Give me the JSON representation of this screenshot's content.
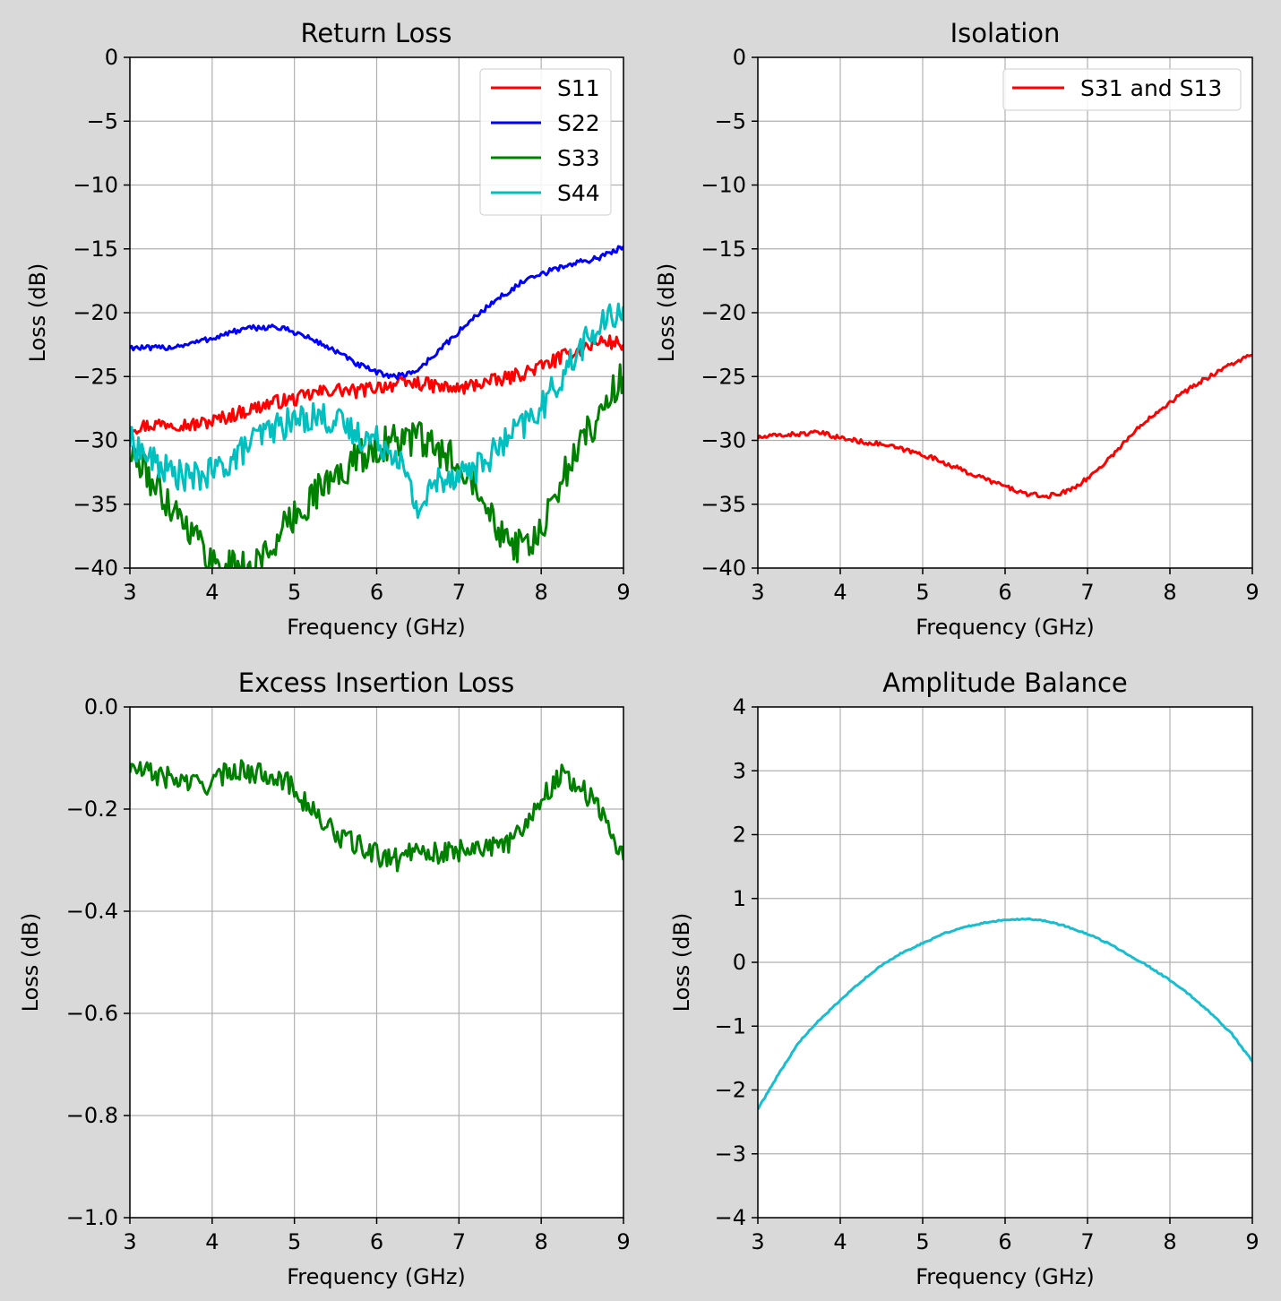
{
  "figure": {
    "background": "#d9d9d9"
  },
  "chart_data": [
    {
      "type": "line",
      "title": "Return Loss",
      "xlabel": "Frequency (GHz)",
      "ylabel": "Loss (dB)",
      "xlim": [
        3,
        9
      ],
      "ylim": [
        -40,
        0
      ],
      "xticks": [
        3,
        4,
        5,
        6,
        7,
        8,
        9
      ],
      "yticks": [
        0,
        -5,
        -10,
        -15,
        -20,
        -25,
        -30,
        -35,
        -40
      ],
      "grid": true,
      "legend": "top-right",
      "series": [
        {
          "name": "S11",
          "color": "#ff0000",
          "x": [
            3.0,
            3.25,
            3.5,
            3.75,
            4.0,
            4.25,
            4.5,
            4.75,
            5.0,
            5.25,
            5.5,
            5.75,
            6.0,
            6.25,
            6.5,
            6.75,
            7.0,
            7.25,
            7.5,
            7.75,
            8.0,
            8.25,
            8.5,
            8.75,
            9.0
          ],
          "y": [
            -29.0,
            -28.8,
            -28.6,
            -28.8,
            -28.5,
            -28.0,
            -27.5,
            -27.0,
            -26.8,
            -26.3,
            -26.0,
            -26.2,
            -25.8,
            -25.6,
            -25.5,
            -25.8,
            -26.0,
            -25.5,
            -25.3,
            -24.8,
            -24.2,
            -23.5,
            -22.8,
            -22.2,
            -22.5
          ]
        },
        {
          "name": "S22",
          "color": "#0000ff",
          "x": [
            3.0,
            3.25,
            3.5,
            3.75,
            4.0,
            4.25,
            4.5,
            4.75,
            5.0,
            5.25,
            5.5,
            5.75,
            6.0,
            6.25,
            6.5,
            6.75,
            7.0,
            7.25,
            7.5,
            7.75,
            8.0,
            8.25,
            8.5,
            8.75,
            9.0
          ],
          "y": [
            -22.7,
            -22.8,
            -22.7,
            -22.4,
            -22.0,
            -21.5,
            -21.2,
            -21.1,
            -21.5,
            -22.2,
            -23.0,
            -24.0,
            -24.7,
            -25.0,
            -24.5,
            -23.0,
            -21.5,
            -20.0,
            -18.8,
            -17.7,
            -17.0,
            -16.4,
            -16.0,
            -15.6,
            -14.8
          ]
        },
        {
          "name": "S33",
          "color": "#008000",
          "x": [
            3.0,
            3.25,
            3.5,
            3.75,
            4.0,
            4.25,
            4.5,
            4.75,
            5.0,
            5.25,
            5.5,
            5.75,
            6.0,
            6.25,
            6.5,
            6.75,
            7.0,
            7.25,
            7.5,
            7.75,
            8.0,
            8.25,
            8.5,
            8.75,
            9.0
          ],
          "y": [
            -31.0,
            -33.0,
            -35.0,
            -37.0,
            -39.5,
            -40.0,
            -40.0,
            -38.0,
            -36.0,
            -34.0,
            -33.0,
            -31.5,
            -30.5,
            -30.0,
            -29.8,
            -31.0,
            -31.5,
            -33.5,
            -37.0,
            -38.5,
            -37.5,
            -33.0,
            -30.0,
            -27.5,
            -25.0
          ]
        },
        {
          "name": "S44",
          "color": "#00bfbf",
          "x": [
            3.0,
            3.25,
            3.5,
            3.75,
            4.0,
            4.25,
            4.5,
            4.75,
            5.0,
            5.25,
            5.5,
            5.75,
            6.0,
            6.25,
            6.5,
            6.75,
            7.0,
            7.25,
            7.5,
            7.75,
            8.0,
            8.25,
            8.5,
            8.75,
            9.0
          ],
          "y": [
            -30.0,
            -31.5,
            -32.5,
            -33.0,
            -32.5,
            -31.5,
            -30.0,
            -29.0,
            -28.5,
            -28.0,
            -28.5,
            -29.5,
            -30.0,
            -31.0,
            -35.5,
            -33.0,
            -32.5,
            -32.0,
            -30.5,
            -29.0,
            -27.5,
            -25.0,
            -22.5,
            -21.0,
            -19.5
          ]
        }
      ]
    },
    {
      "type": "line",
      "title": "Isolation",
      "xlabel": "Frequency (GHz)",
      "ylabel": "Loss (dB)",
      "xlim": [
        3,
        9
      ],
      "ylim": [
        -40,
        0
      ],
      "xticks": [
        3,
        4,
        5,
        6,
        7,
        8,
        9
      ],
      "yticks": [
        0,
        -5,
        -10,
        -15,
        -20,
        -25,
        -30,
        -35,
        -40
      ],
      "grid": true,
      "legend": "top-right",
      "series": [
        {
          "name": "S31 and S13",
          "color": "#ff0000",
          "x": [
            3.0,
            3.25,
            3.5,
            3.75,
            4.0,
            4.25,
            4.5,
            4.75,
            5.0,
            5.25,
            5.5,
            5.75,
            6.0,
            6.25,
            6.5,
            6.75,
            7.0,
            7.25,
            7.5,
            7.75,
            8.0,
            8.25,
            8.5,
            8.75,
            9.0
          ],
          "y": [
            -29.8,
            -29.6,
            -29.5,
            -29.4,
            -29.8,
            -30.1,
            -30.3,
            -30.7,
            -31.1,
            -31.7,
            -32.4,
            -33.0,
            -33.6,
            -34.2,
            -34.4,
            -34.0,
            -33.0,
            -31.5,
            -29.8,
            -28.2,
            -27.0,
            -25.9,
            -24.9,
            -24.0,
            -23.3
          ]
        }
      ]
    },
    {
      "type": "line",
      "title": "Excess Insertion Loss",
      "xlabel": "Frequency (GHz)",
      "ylabel": "Loss (dB)",
      "xlim": [
        3,
        9
      ],
      "ylim": [
        -1.0,
        0.0
      ],
      "xticks": [
        3,
        4,
        5,
        6,
        7,
        8,
        9
      ],
      "yticks": [
        0.0,
        -0.2,
        -0.4,
        -0.6,
        -0.8,
        -1.0
      ],
      "tick_decimals": 1,
      "grid": true,
      "series": [
        {
          "color": "#008000",
          "x": [
            3.0,
            3.25,
            3.5,
            3.75,
            4.0,
            4.25,
            4.5,
            4.75,
            5.0,
            5.25,
            5.5,
            5.75,
            6.0,
            6.25,
            6.5,
            6.75,
            7.0,
            7.25,
            7.5,
            7.75,
            8.0,
            8.25,
            8.5,
            8.75,
            9.0
          ],
          "y": [
            -0.12,
            -0.13,
            -0.14,
            -0.15,
            -0.15,
            -0.12,
            -0.13,
            -0.13,
            -0.16,
            -0.21,
            -0.25,
            -0.27,
            -0.29,
            -0.3,
            -0.27,
            -0.29,
            -0.28,
            -0.27,
            -0.28,
            -0.24,
            -0.18,
            -0.13,
            -0.16,
            -0.21,
            -0.3
          ]
        }
      ]
    },
    {
      "type": "line",
      "title": "Amplitude Balance",
      "xlabel": "Frequency (GHz)",
      "ylabel": "Loss (dB)",
      "xlim": [
        3,
        9
      ],
      "ylim": [
        -4,
        4
      ],
      "xticks": [
        3,
        4,
        5,
        6,
        7,
        8,
        9
      ],
      "yticks": [
        4,
        3,
        2,
        1,
        0,
        -1,
        -2,
        -3,
        -4
      ],
      "grid": true,
      "series": [
        {
          "color": "#17becf",
          "x": [
            3.0,
            3.25,
            3.5,
            3.75,
            4.0,
            4.25,
            4.5,
            4.75,
            5.0,
            5.25,
            5.5,
            5.75,
            6.0,
            6.25,
            6.5,
            6.75,
            7.0,
            7.25,
            7.5,
            7.75,
            8.0,
            8.25,
            8.5,
            8.75,
            9.0
          ],
          "y": [
            -2.3,
            -1.75,
            -1.25,
            -0.9,
            -0.6,
            -0.3,
            -0.05,
            0.15,
            0.3,
            0.45,
            0.55,
            0.62,
            0.67,
            0.68,
            0.65,
            0.56,
            0.44,
            0.3,
            0.12,
            -0.07,
            -0.28,
            -0.52,
            -0.8,
            -1.12,
            -1.55
          ]
        }
      ]
    }
  ]
}
